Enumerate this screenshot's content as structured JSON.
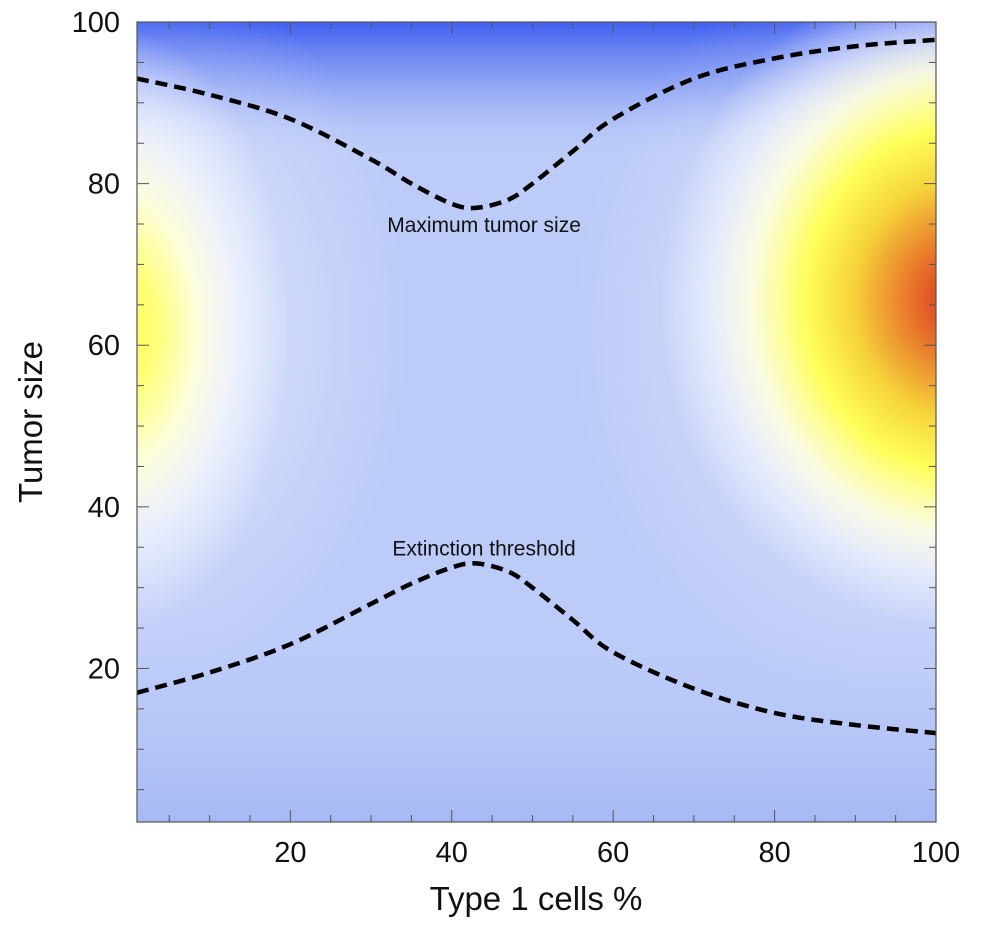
{
  "chart_data": {
    "type": "heatmap",
    "title": "",
    "xlabel": "Type 1 cells %",
    "ylabel": "Tumor size",
    "xlim": [
      1,
      100
    ],
    "ylim": [
      1,
      100
    ],
    "xticks": [
      20,
      40,
      60,
      80,
      100
    ],
    "yticks": [
      20,
      40,
      60,
      80,
      100
    ],
    "grid": false,
    "colormap": [
      "#4f6ef0",
      "#9fb4f3",
      "#ffffff",
      "#ffff60",
      "#f2c232",
      "#d63a23"
    ],
    "series": [
      {
        "name": "Maximum tumor size",
        "style": "dashed",
        "x": [
          1,
          10,
          20,
          30,
          35,
          40,
          43,
          47,
          50,
          55,
          60,
          70,
          80,
          90,
          100
        ],
        "y": [
          93,
          91,
          88,
          83,
          80,
          77.5,
          77,
          78,
          80,
          84,
          88,
          93,
          95.5,
          97,
          97.8
        ]
      },
      {
        "name": "Extinction threshold",
        "style": "dashed",
        "x": [
          1,
          10,
          20,
          30,
          35,
          40,
          43,
          47,
          50,
          55,
          60,
          70,
          80,
          90,
          100
        ],
        "y": [
          17,
          19.5,
          23,
          28,
          30.5,
          32.5,
          33,
          32,
          30,
          26,
          22,
          17.5,
          14.5,
          13,
          12
        ]
      }
    ],
    "annotations": [
      {
        "text": "Maximum tumor size",
        "x": 44,
        "y": 74
      },
      {
        "text": "Extinction threshold",
        "x": 44,
        "y": 34
      }
    ],
    "color_field": {
      "description_values": "relative intensity 0..1 (0 = blue, 0.5 = white, 1 = red)",
      "hot_spots": [
        {
          "x": 100,
          "y": 66,
          "intensity": 1.0
        },
        {
          "x": 1,
          "y": 62,
          "intensity": 0.72
        }
      ]
    }
  }
}
